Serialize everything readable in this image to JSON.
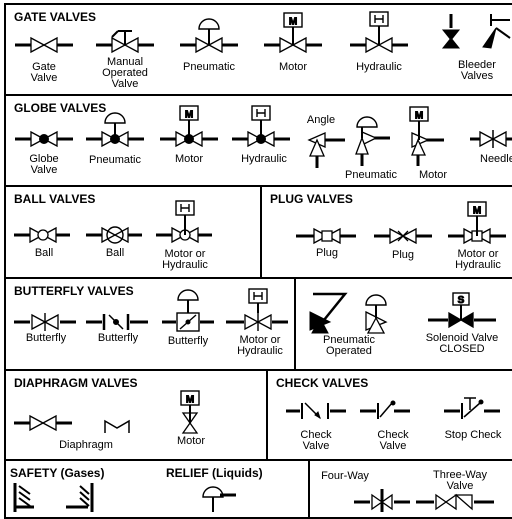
{
  "sections": {
    "gate": {
      "title": "GATE VALVES"
    },
    "globe": {
      "title": "GLOBE VALVES"
    },
    "ball": {
      "title": "BALL VALVES"
    },
    "plug": {
      "title": "PLUG VALVES"
    },
    "butterfly": {
      "title": "BUTTERFLY VALVES"
    },
    "diaphragm": {
      "title": "DIAPHRAGM VALVES"
    },
    "check": {
      "title": "CHECK VALVES"
    },
    "safety": {
      "title": "SAFETY (Gases)"
    },
    "relief": {
      "title": "RELIEF (Liquids)"
    }
  },
  "actuator_letter": "M",
  "labels": {
    "gate": [
      "Gate\nValve",
      "Manual\nOperated\nValve",
      "Pneumatic",
      "Motor",
      "Hydraulic",
      "Bleeder\nValves"
    ],
    "globe": [
      "Globe\nValve",
      "Pneumatic",
      "Motor",
      "Hydraulic",
      "Angle",
      "Pneumatic",
      "Motor",
      "Needle"
    ],
    "ball": [
      "Ball",
      "Ball",
      "Motor or\nHydraulic"
    ],
    "plug": [
      "Plug",
      "Plug",
      "Motor or\nHydraulic"
    ],
    "butterfly": [
      "Butterfly",
      "Butterfly",
      "Butterfly",
      "Motor or\nHydraulic"
    ],
    "special": [
      "Pneumatic\nOperated",
      "Solenoid Valve\nCLOSED"
    ],
    "solenoid_letter": "S",
    "diaphragm": [
      "Diaphragm",
      "Motor"
    ],
    "check": [
      "Check\nValve",
      "Check\nValve",
      "Stop Check"
    ],
    "multi": [
      "Four-Way",
      "Three-Way\nValve"
    ]
  }
}
